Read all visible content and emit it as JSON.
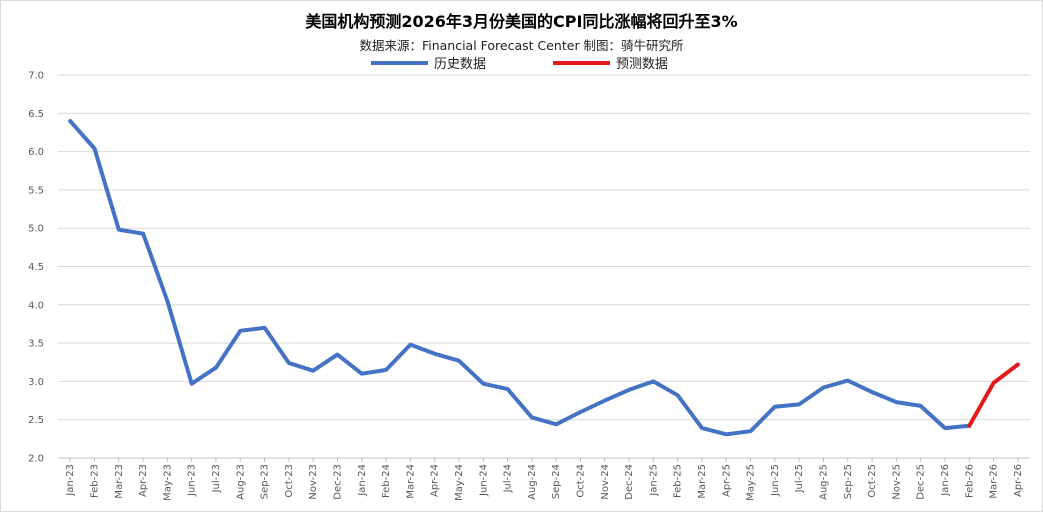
{
  "chart_data": {
    "type": "line",
    "title": "美国机构预测2026年3月份美国的CPI同比涨幅将回升至3%",
    "subtitle": "数据来源：Financial Forecast Center   制图：骑牛研究所",
    "ylim": [
      2.0,
      7.0
    ],
    "yticks": [
      "7.0",
      "6.5",
      "6.0",
      "5.5",
      "5.0",
      "4.5",
      "4.0",
      "3.5",
      "3.0",
      "2.5",
      "2.0"
    ],
    "grid": true,
    "legend_position": "top",
    "categories": [
      "Jan-23",
      "Feb-23",
      "Mar-23",
      "Apr-23",
      "May-23",
      "Jun-23",
      "Jul-23",
      "Aug-23",
      "Sep-23",
      "Oct-23",
      "Nov-23",
      "Dec-23",
      "Jan-24",
      "Feb-24",
      "Mar-24",
      "Apr-24",
      "May-24",
      "Jun-24",
      "Jul-24",
      "Aug-24",
      "Sep-24",
      "Oct-24",
      "Nov-24",
      "Dec-24",
      "Jan-25",
      "Feb-25",
      "Mar-25",
      "Apr-25",
      "May-25",
      "Jun-25",
      "Jul-25",
      "Aug-25",
      "Sep-25",
      "Oct-25",
      "Nov-25",
      "Dec-25",
      "Jan-26",
      "Feb-26",
      "Mar-26",
      "Apr-26"
    ],
    "series": [
      {
        "name": "历史数据",
        "color": "#4472c4",
        "values": [
          6.4,
          6.04,
          4.98,
          4.93,
          4.05,
          2.97,
          3.18,
          3.66,
          3.7,
          3.24,
          3.14,
          3.35,
          3.1,
          3.15,
          3.48,
          3.36,
          3.27,
          2.97,
          2.9,
          2.53,
          2.44,
          2.6,
          2.75,
          2.89,
          3.0,
          2.82,
          2.39,
          2.31,
          2.35,
          2.67,
          2.7,
          2.92,
          3.01,
          2.86,
          2.73,
          2.68,
          2.39,
          2.42,
          null,
          null
        ]
      },
      {
        "name": "预测数据",
        "color": "#e31a1c",
        "values": [
          null,
          null,
          null,
          null,
          null,
          null,
          null,
          null,
          null,
          null,
          null,
          null,
          null,
          null,
          null,
          null,
          null,
          null,
          null,
          null,
          null,
          null,
          null,
          null,
          null,
          null,
          null,
          null,
          null,
          null,
          null,
          null,
          null,
          null,
          null,
          null,
          null,
          2.42,
          2.98,
          3.22
        ]
      }
    ]
  }
}
